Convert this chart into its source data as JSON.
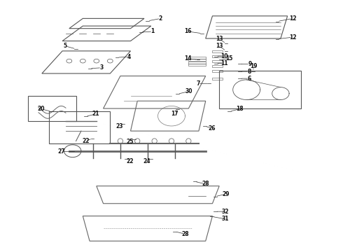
{
  "background_color": "#ffffff",
  "fig_width": 4.9,
  "fig_height": 3.6,
  "dpi": 100,
  "edge_color": "#555555",
  "edge_color2": "#666666",
  "edge_color3": "#888888",
  "label_color": "#111111",
  "label_fontsize": 5.5,
  "label_fontweight": "bold"
}
